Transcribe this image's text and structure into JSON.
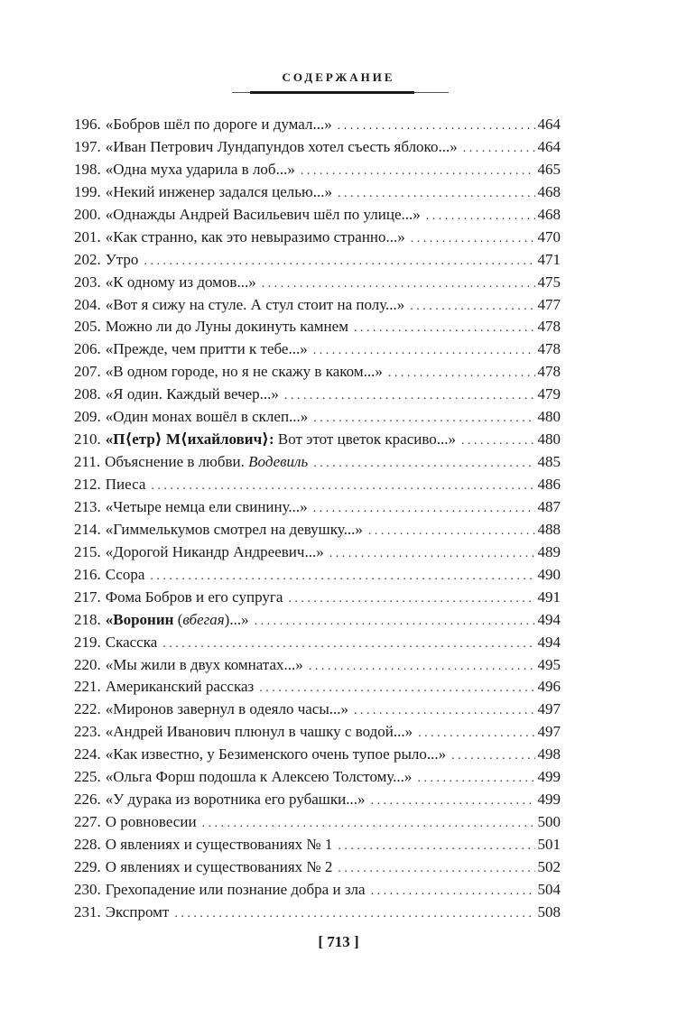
{
  "header": {
    "title": "СОДЕРЖАНИЕ"
  },
  "entries": [
    {
      "num": "196.",
      "title": [
        {
          "text": "«Бобров шёл по дороге и думал...»"
        }
      ],
      "page": "464"
    },
    {
      "num": "197.",
      "title": [
        {
          "text": "«Иван Петрович Лундапундов хотел съесть яблоко...»"
        }
      ],
      "page": "464"
    },
    {
      "num": "198.",
      "title": [
        {
          "text": "«Одна муха ударила в лоб...»"
        }
      ],
      "page": "465"
    },
    {
      "num": "199.",
      "title": [
        {
          "text": "«Некий инженер задался целью...»"
        }
      ],
      "page": "468"
    },
    {
      "num": "200.",
      "title": [
        {
          "text": "«Однажды Андрей Васильевич шёл по улице...»"
        }
      ],
      "page": "468"
    },
    {
      "num": "201.",
      "title": [
        {
          "text": "«Как странно, как это невыразимо странно...»"
        }
      ],
      "page": "470"
    },
    {
      "num": "202.",
      "title": [
        {
          "text": "Утро"
        }
      ],
      "page": "471"
    },
    {
      "num": "203.",
      "title": [
        {
          "text": "«К одному из домов...»"
        }
      ],
      "page": "475"
    },
    {
      "num": "204.",
      "title": [
        {
          "text": "«Вот я сижу на стуле. А стул стоит на полу...»"
        }
      ],
      "page": "477"
    },
    {
      "num": "205.",
      "title": [
        {
          "text": "Можно ли до Луны докинуть камнем"
        }
      ],
      "page": "478"
    },
    {
      "num": "206.",
      "title": [
        {
          "text": "«Прежде, чем притти к тебе...»"
        }
      ],
      "page": "478"
    },
    {
      "num": "207.",
      "title": [
        {
          "text": "«В одном городе, но я не скажу в каком...»"
        }
      ],
      "page": "478"
    },
    {
      "num": "208.",
      "title": [
        {
          "text": "«Я один. Каждый вечер...»"
        }
      ],
      "page": "479"
    },
    {
      "num": "209.",
      "title": [
        {
          "text": "«Один монах вошёл в склеп...»"
        }
      ],
      "page": "480"
    },
    {
      "num": "210.",
      "title": [
        {
          "text": "«П⟨етр⟩ М⟨ихайлович⟩:",
          "style": "b"
        },
        {
          "text": " Вот этот цветок красиво...»"
        }
      ],
      "page": "480"
    },
    {
      "num": "211.",
      "title": [
        {
          "text": "Объяснение в любви. "
        },
        {
          "text": "Водевиль",
          "style": "i"
        }
      ],
      "page": "485"
    },
    {
      "num": "212.",
      "title": [
        {
          "text": "Пиеса"
        }
      ],
      "page": "486"
    },
    {
      "num": "213.",
      "title": [
        {
          "text": "«Четыре немца ели свинину...»"
        }
      ],
      "page": "487"
    },
    {
      "num": "214.",
      "title": [
        {
          "text": "«Гиммелькумов смотрел на девушку...»"
        }
      ],
      "page": "488"
    },
    {
      "num": "215.",
      "title": [
        {
          "text": "«Дорогой Никандр Андреевич...»"
        }
      ],
      "page": "489"
    },
    {
      "num": "216.",
      "title": [
        {
          "text": "Ссора"
        }
      ],
      "page": "490"
    },
    {
      "num": "217.",
      "title": [
        {
          "text": "Фома Бобров и его супруга"
        }
      ],
      "page": "491"
    },
    {
      "num": "218.",
      "title": [
        {
          "text": "«Воронин",
          "style": "b"
        },
        {
          "text": " ("
        },
        {
          "text": "вбегая",
          "style": "i"
        },
        {
          "text": ")...»"
        }
      ],
      "page": "494"
    },
    {
      "num": "219.",
      "title": [
        {
          "text": "Скасска"
        }
      ],
      "page": "494"
    },
    {
      "num": "220.",
      "title": [
        {
          "text": "«Мы жили в двух комнатах...»"
        }
      ],
      "page": "495"
    },
    {
      "num": "221.",
      "title": [
        {
          "text": "Американский рассказ"
        }
      ],
      "page": "496"
    },
    {
      "num": "222.",
      "title": [
        {
          "text": "«Миронов завернул в одеяло часы...»"
        }
      ],
      "page": "497"
    },
    {
      "num": "223.",
      "title": [
        {
          "text": "«Андрей Иванович плюнул в чашку с водой...»"
        }
      ],
      "page": "497"
    },
    {
      "num": "224.",
      "title": [
        {
          "text": "«Как известно, у Безименского очень тупое рыло...»"
        }
      ],
      "page": "498"
    },
    {
      "num": "225.",
      "title": [
        {
          "text": "«Ольга Форш подошла к Алексею Толстому...»"
        }
      ],
      "page": "499"
    },
    {
      "num": "226.",
      "title": [
        {
          "text": "«У дурака из воротника его рубашки...»"
        }
      ],
      "page": "499"
    },
    {
      "num": "227.",
      "title": [
        {
          "text": "О ровновесии"
        }
      ],
      "page": "500"
    },
    {
      "num": "228.",
      "title": [
        {
          "text": "О явлениях и существованиях № 1"
        }
      ],
      "page": "501"
    },
    {
      "num": "229.",
      "title": [
        {
          "text": "О явлениях и существованиях № 2"
        }
      ],
      "page": "502"
    },
    {
      "num": "230.",
      "title": [
        {
          "text": "Грехопадение или познание добра и зла"
        }
      ],
      "page": "504"
    },
    {
      "num": "231.",
      "title": [
        {
          "text": "Экспромт"
        }
      ],
      "page": "508"
    }
  ],
  "footer": {
    "page_number": "[ 713 ]"
  }
}
